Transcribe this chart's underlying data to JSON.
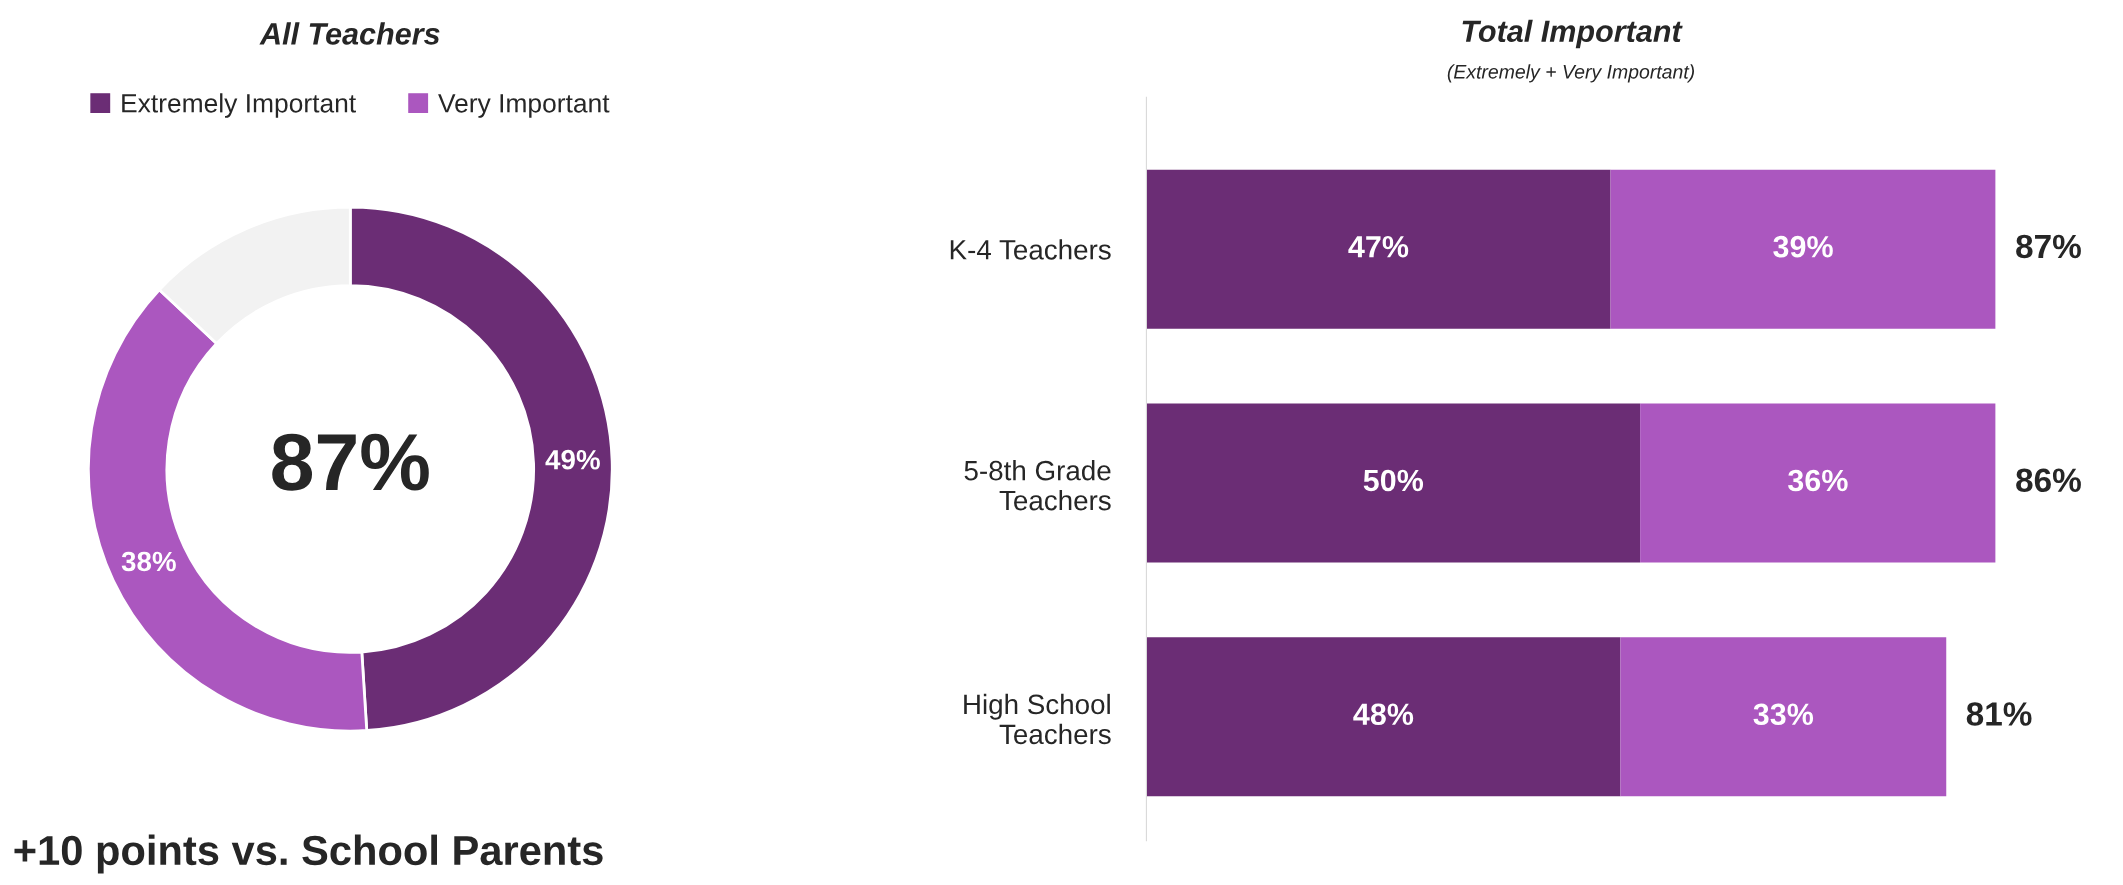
{
  "chart_data": [
    {
      "type": "donut",
      "title": "All Teachers",
      "categories": [
        "Extremely Important",
        "Very Important",
        null
      ],
      "values": [
        49,
        38,
        13
      ],
      "colors": [
        "#6b2d75",
        "#ab57bf",
        "#f2f2f2"
      ],
      "value_labels": [
        "49%",
        "38%",
        null
      ],
      "legend": "top",
      "annotations": [
        "87%",
        "+10 points vs. School Parents"
      ]
    },
    {
      "type": "bar",
      "orientation": "horizontal",
      "stacked": true,
      "title": "Total Important",
      "subtitle": "(Extremely + Very Important)",
      "categories": [
        "K-4 Teachers",
        "5-8th Grade\nTeachers",
        "High School\nTeachers"
      ],
      "series": [
        {
          "color": "#6b2d75",
          "values": [
            47,
            50,
            48
          ],
          "value_labels": [
            "47%",
            "50%",
            "48%"
          ]
        },
        {
          "color": "#ab57bf",
          "values": [
            39,
            36,
            33
          ],
          "value_labels": [
            "39%",
            "36%",
            "33%"
          ]
        }
      ],
      "totals": [
        "87%",
        "86%",
        "81%"
      ],
      "tick_labels": "y",
      "legend": false,
      "grid": false
    }
  ]
}
